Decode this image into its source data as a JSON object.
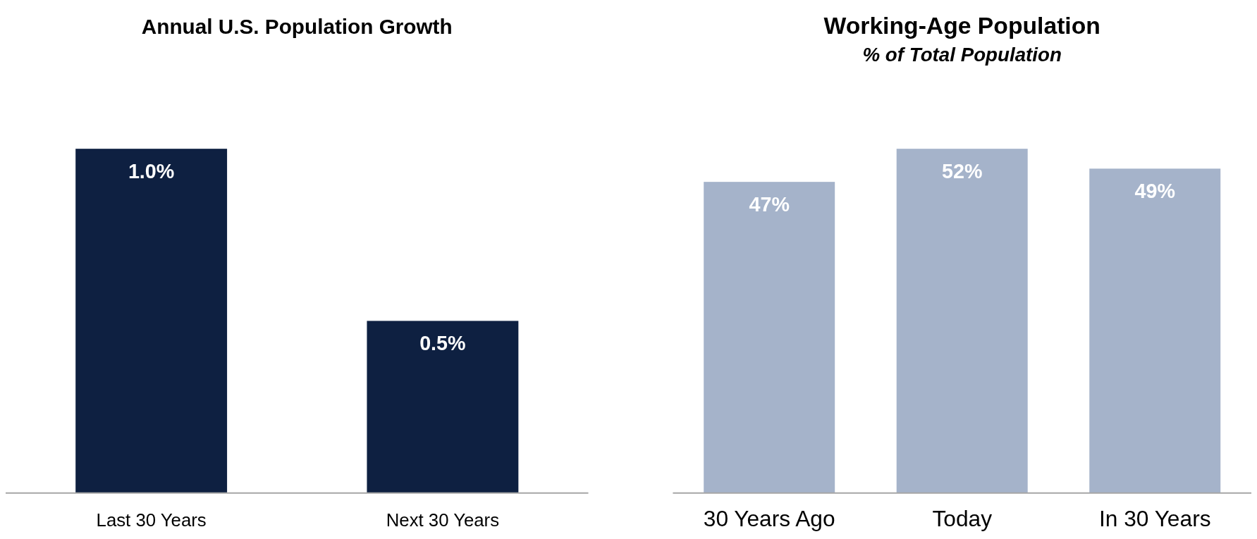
{
  "chart_data": [
    {
      "type": "bar",
      "title": "Annual U.S. Population Growth",
      "categories": [
        "Last 30 Years",
        "Next 30 Years"
      ],
      "values": [
        1.0,
        0.5
      ],
      "color": "#0e2041",
      "value_labels": [
        "1.0%",
        "0.5%"
      ],
      "tick_labels": "x"
    },
    {
      "type": "bar",
      "title": "Working-Age Population",
      "subtitle": "% of Total Population",
      "categories": [
        "30 Years Ago",
        "Today",
        "In 30 Years"
      ],
      "values": [
        47,
        52,
        49
      ],
      "color": "#a5b3ca",
      "value_labels": [
        "47%",
        "52%",
        "49%"
      ],
      "tick_labels": "x"
    }
  ]
}
